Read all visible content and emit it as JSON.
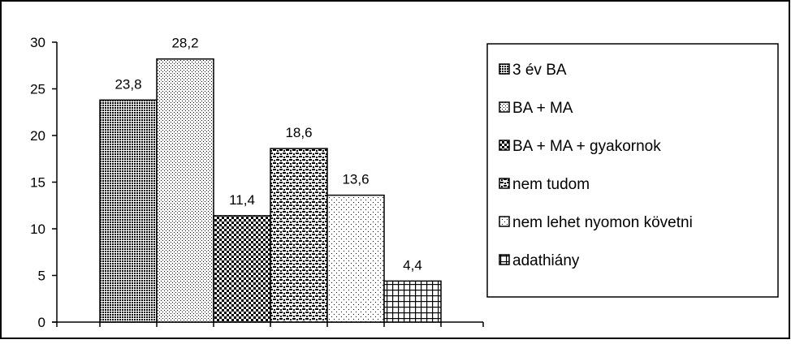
{
  "chart_data": {
    "type": "bar",
    "title": "",
    "xlabel": "",
    "ylabel": "",
    "ylim": [
      0,
      30
    ],
    "yticks": [
      0,
      5,
      10,
      15,
      20,
      25,
      30
    ],
    "categories": [
      "3 év BA",
      "BA + MA",
      "BA + MA + gyakornok",
      "nem tudom",
      "nem lehet nyomon követni",
      "adathiány"
    ],
    "values": [
      23.8,
      28.2,
      11.4,
      18.6,
      13.6,
      4.4
    ],
    "data_labels": [
      "23,8",
      "28,2",
      "11,4",
      "18,6",
      "13,6",
      "4,4"
    ],
    "legend": {
      "placement": "right",
      "entries": [
        "3 év BA",
        "BA + MA",
        "BA + MA + gyakornok",
        "nem tudom",
        "nem lehet nyomon követni",
        "adathiány"
      ]
    },
    "grid": false,
    "patterns": [
      "dense-dots-dark",
      "light-dots",
      "checker-dark",
      "dashes-dark",
      "sparse-dots",
      "grid-lines"
    ]
  }
}
